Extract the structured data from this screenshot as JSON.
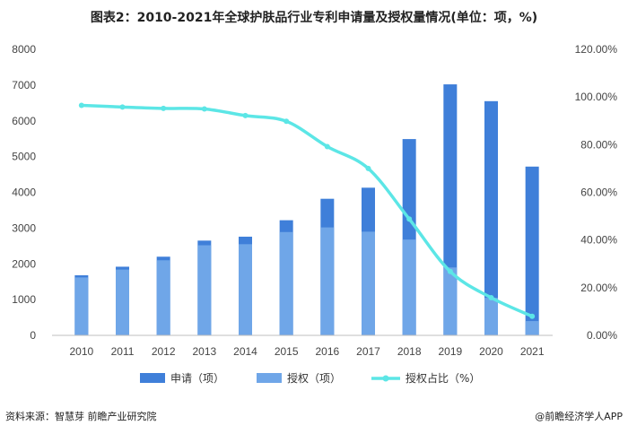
{
  "title": "图表2：2010-2021年全球护肤品行业专利申请量及授权量情况(单位：项，%)",
  "source": "资料来源：智慧芽 前瞻产业研究院",
  "brand": "@前瞻经济学人APP",
  "colors": {
    "applications": "#3f7fd9",
    "grants": "#6fa6e8",
    "ratio": "#5ce6e6"
  },
  "chart_data": {
    "type": "bar",
    "categories": [
      "2010",
      "2011",
      "2012",
      "2013",
      "2014",
      "2015",
      "2016",
      "2017",
      "2018",
      "2019",
      "2020",
      "2021"
    ],
    "series": [
      {
        "name": "申请（项）",
        "type": "bar",
        "axis": "left",
        "values": [
          1680,
          1920,
          2200,
          2650,
          2760,
          3220,
          3820,
          4130,
          5490,
          7020,
          6550,
          4720
        ]
      },
      {
        "name": "授权（项）",
        "type": "bar",
        "axis": "left",
        "values": [
          1620,
          1840,
          2100,
          2520,
          2550,
          2890,
          3020,
          2900,
          2680,
          1900,
          1050,
          400
        ]
      },
      {
        "name": "授权占比（%）",
        "type": "line",
        "axis": "right",
        "values": [
          96.5,
          95.8,
          95.2,
          95.0,
          92.2,
          89.8,
          79.2,
          70.0,
          48.8,
          26.8,
          15.8,
          8.0
        ]
      }
    ],
    "y_left": {
      "min": 0,
      "max": 8000,
      "ticks": [
        "0",
        "1000",
        "2000",
        "3000",
        "4000",
        "5000",
        "6000",
        "7000",
        "8000"
      ]
    },
    "y_right": {
      "min": 0,
      "max": 120,
      "ticks": [
        "0.00%",
        "20.00%",
        "40.00%",
        "60.00%",
        "80.00%",
        "100.00%",
        "120.00%"
      ]
    },
    "legend_position": "bottom",
    "grid": false
  }
}
